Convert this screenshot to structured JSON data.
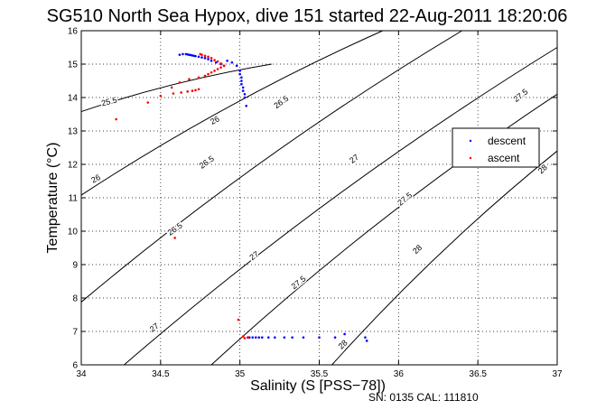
{
  "chart_data": {
    "type": "scatter",
    "title": "SG510 North Sea Hypox, dive 151 started 22-Aug-2011 18:20:06",
    "xlabel": "Salinity (S [PSS−78])",
    "ylabel": "Temperature (°C)",
    "xlim": [
      34,
      37
    ],
    "ylim": [
      6,
      16
    ],
    "xticks": [
      "34",
      "34.5",
      "35",
      "35.5",
      "36",
      "36.5",
      "37"
    ],
    "yticks": [
      "6",
      "7",
      "8",
      "9",
      "10",
      "11",
      "12",
      "13",
      "14",
      "15",
      "16"
    ],
    "grid": true,
    "legend_position": "right",
    "footer": "SN: 0135  CAL: 111810",
    "colors": {
      "descent": "#0000ff",
      "ascent": "#ff0000",
      "contour": "#000000"
    },
    "density_contours": [
      {
        "label": "25.5",
        "x": [
          34.0,
          35.2
        ],
        "y": [
          13.58,
          15.0
        ],
        "label_pos": [
          34.18,
          13.8
        ]
      },
      {
        "label": "26",
        "x": [
          34.0,
          35.9
        ],
        "y": [
          11.08,
          16.0
        ],
        "label_pos": [
          34.1,
          11.5
        ]
      },
      {
        "label": "26",
        "x": [
          34.0,
          35.9
        ],
        "y": [
          11.08,
          16.0
        ],
        "label_pos": [
          34.85,
          13.25
        ]
      },
      {
        "label": "26.5",
        "x": [
          34.0,
          36.4
        ],
        "y": [
          7.88,
          16.0
        ],
        "label_pos": [
          34.6,
          10.0
        ]
      },
      {
        "label": "26.5",
        "x": [
          34.0,
          36.4
        ],
        "y": [
          7.88,
          16.0
        ],
        "label_pos": [
          34.8,
          12.0
        ]
      },
      {
        "label": "26.5",
        "x": [
          34.0,
          36.4
        ],
        "y": [
          7.88,
          16.0
        ],
        "label_pos": [
          35.27,
          13.8
        ]
      },
      {
        "label": "27",
        "x": [
          34.27,
          37.0
        ],
        "y": [
          6.0,
          15.5
        ],
        "label_pos": [
          34.47,
          7.05
        ]
      },
      {
        "label": "27",
        "x": [
          34.27,
          37.0
        ],
        "y": [
          6.0,
          15.5
        ],
        "label_pos": [
          35.1,
          9.2
        ]
      },
      {
        "label": "27",
        "x": [
          34.27,
          37.0
        ],
        "y": [
          6.0,
          15.5
        ],
        "label_pos": [
          35.73,
          12.1
        ]
      },
      {
        "label": "27.5",
        "x": [
          34.82,
          37.0
        ],
        "y": [
          6.0,
          14.1
        ],
        "label_pos": [
          35.38,
          8.4
        ]
      },
      {
        "label": "27.5",
        "x": [
          34.82,
          37.0
        ],
        "y": [
          6.0,
          14.1
        ],
        "label_pos": [
          36.05,
          10.9
        ]
      },
      {
        "label": "27.5",
        "x": [
          34.82,
          37.0
        ],
        "y": [
          6.0,
          14.1
        ],
        "label_pos": [
          36.78,
          14.0
        ]
      },
      {
        "label": "28",
        "x": [
          35.58,
          37.0
        ],
        "y": [
          6.0,
          12.4
        ],
        "label_pos": [
          35.66,
          6.55
        ]
      },
      {
        "label": "28",
        "x": [
          35.58,
          37.0
        ],
        "y": [
          6.0,
          12.4
        ],
        "label_pos": [
          36.13,
          9.4
        ]
      },
      {
        "label": "28",
        "x": [
          35.58,
          37.0
        ],
        "y": [
          6.0,
          12.4
        ],
        "label_pos": [
          36.92,
          11.8
        ]
      }
    ],
    "series": [
      {
        "name": "descent",
        "x": [
          34.62,
          34.64,
          34.66,
          34.67,
          34.68,
          34.69,
          34.7,
          34.71,
          34.72,
          34.74,
          34.76,
          34.78,
          34.8,
          34.82,
          34.85,
          34.88,
          34.9,
          34.92,
          34.95,
          34.98,
          35.0,
          35.0,
          35.01,
          35.01,
          35.01,
          35.02,
          35.02,
          35.03,
          35.03,
          35.04,
          35.05,
          35.05,
          35.06,
          35.08,
          35.1,
          35.12,
          35.14,
          35.18,
          35.22,
          35.28,
          35.33,
          35.4,
          35.5,
          35.6,
          35.66,
          35.79,
          35.8
        ],
        "y": [
          15.28,
          15.3,
          15.3,
          15.29,
          15.28,
          15.27,
          15.26,
          15.25,
          15.24,
          15.22,
          15.2,
          15.18,
          15.15,
          15.1,
          15.05,
          15.0,
          14.95,
          15.1,
          15.05,
          14.95,
          14.8,
          14.7,
          14.6,
          14.5,
          14.4,
          14.3,
          14.2,
          14.1,
          14.0,
          13.75,
          6.82,
          6.82,
          6.82,
          6.82,
          6.82,
          6.82,
          6.82,
          6.82,
          6.82,
          6.82,
          6.82,
          6.82,
          6.82,
          6.82,
          6.92,
          6.82,
          6.72
        ]
      },
      {
        "name": "ascent",
        "x": [
          34.22,
          34.42,
          34.5,
          34.58,
          34.63,
          34.67,
          34.7,
          34.72,
          34.74,
          34.75,
          34.76,
          34.78,
          34.8,
          34.82,
          34.84,
          34.86,
          34.88,
          34.9,
          34.88,
          34.86,
          34.84,
          34.82,
          34.8,
          34.78,
          34.74,
          34.68,
          34.62,
          34.57,
          34.59,
          34.99,
          35.02,
          35.05,
          35.03
        ],
        "y": [
          13.35,
          13.85,
          14.05,
          14.12,
          14.15,
          14.18,
          14.2,
          14.22,
          14.25,
          15.3,
          15.28,
          15.25,
          15.22,
          15.18,
          15.12,
          15.08,
          15.02,
          14.95,
          14.9,
          14.85,
          14.8,
          14.75,
          14.7,
          14.65,
          14.6,
          14.55,
          14.45,
          14.3,
          9.8,
          7.35,
          6.85,
          6.82,
          6.8
        ]
      }
    ]
  }
}
